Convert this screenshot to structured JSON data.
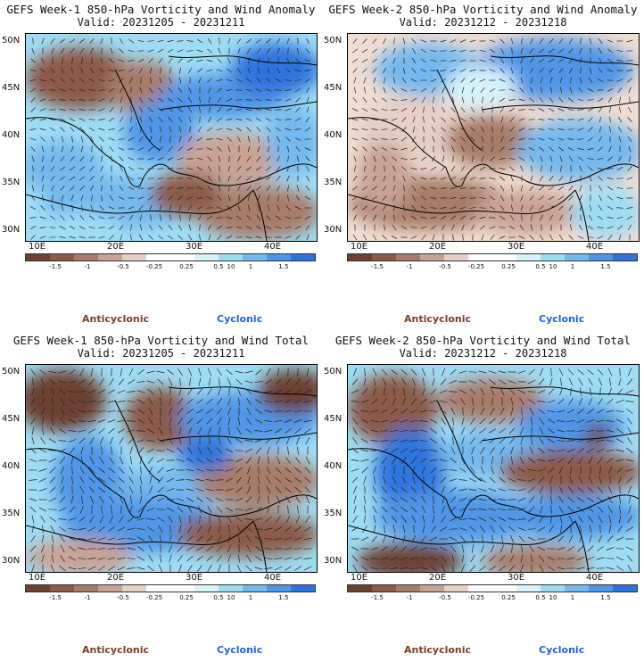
{
  "panels": [
    {
      "title": "GEFS Week-1 850-hPa Vorticity and Wind Anomaly",
      "valid": "Valid: 20231205 - 20231211"
    },
    {
      "title": "GEFS Week-2 850-hPa Vorticity and Wind Anomaly",
      "valid": "Valid: 20231212 - 20231218"
    },
    {
      "title": "GEFS Week-1 850-hPa Vorticity and Wind Total",
      "valid": "Valid: 20231205 - 20231211"
    },
    {
      "title": "GEFS Week-2 850-hPa Vorticity and Wind Total",
      "valid": "Valid: 20231212 - 20231218"
    }
  ],
  "axes": {
    "lat_labels": [
      "50N",
      "45N",
      "40N",
      "35N",
      "30N"
    ],
    "lon_labels": [
      "10E",
      "20E",
      "30E",
      "40E"
    ]
  },
  "colorbar": {
    "ticks": [
      "-1.5",
      "-1",
      "-0.5",
      "-0.25",
      "0.25",
      "0.5",
      "1",
      "1.5"
    ],
    "extra_tick": "10",
    "colors": [
      "#6d4032",
      "#8c5a47",
      "#a97b69",
      "#c9a294",
      "#e6cfc4",
      "#ffffff",
      "#ffffff",
      "#d6f2fb",
      "#9fdcf4",
      "#75b8ee",
      "#4f96e6",
      "#2f74dc"
    ]
  },
  "legend": {
    "anticyclonic": "Anticyclonic",
    "cyclonic": "Cyclonic"
  }
}
